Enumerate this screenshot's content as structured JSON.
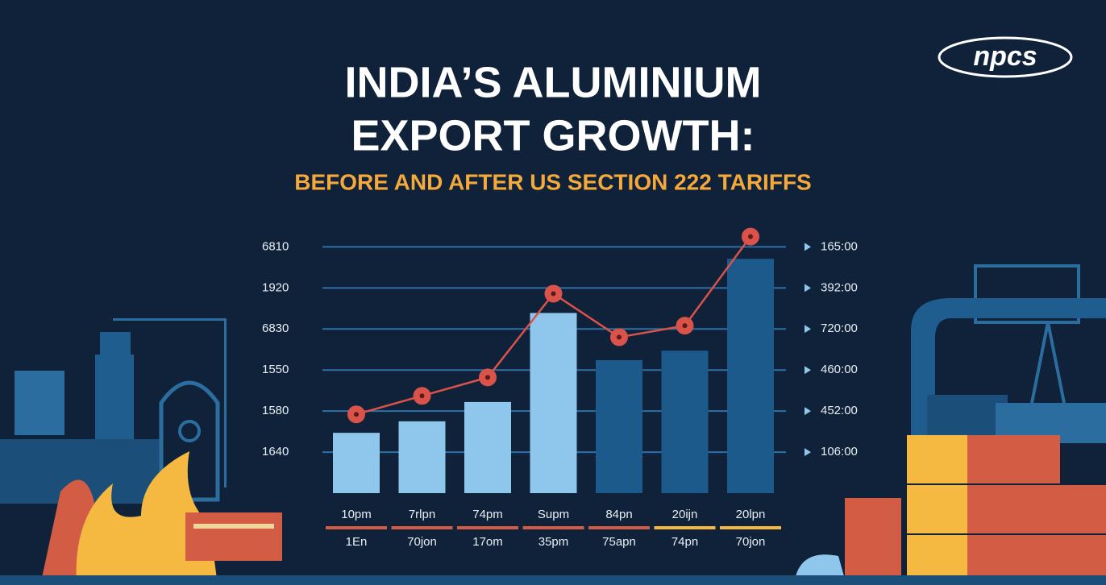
{
  "logo": "npcs",
  "chart_data": {
    "type": "bar",
    "title": [
      "INDIA’S ALUMINIUM",
      "EXPORT GROWTH:"
    ],
    "subtitle": "BEFORE AND AFTER US SECTION 222 TARIFFS",
    "categories": [
      "10pm",
      "7rlpn",
      "74pm",
      "Supm",
      "84pn",
      "20ijn",
      "20lpn"
    ],
    "secondary_categories": [
      "1En",
      "70jon",
      "17om",
      "35pm",
      "75apn",
      "74pn",
      "70jon"
    ],
    "series": [
      {
        "type": "bar",
        "colors": [
          "#8fc6ec",
          "#8fc6ec",
          "#8fc6ec",
          "#8fc6ec",
          "#1d5a8c",
          "#1d5a8c",
          "#1d5a8c"
        ],
        "values": [
          1.47,
          1.75,
          2.22,
          4.39,
          3.24,
          3.47,
          5.71
        ]
      },
      {
        "type": "line",
        "color": "#d9534a",
        "axis": "y2",
        "values": [
          1.92,
          2.37,
          2.82,
          4.86,
          3.8,
          4.08,
          6.25
        ]
      }
    ],
    "ylim": [
      0,
      6.4
    ],
    "yticks": [
      {
        "value": 6,
        "label": "6810"
      },
      {
        "value": 5,
        "label": "1920"
      },
      {
        "value": 4,
        "label": "6830"
      },
      {
        "value": 3,
        "label": "1550"
      },
      {
        "value": 2,
        "label": "1580"
      },
      {
        "value": 1,
        "label": "1640"
      }
    ],
    "y2lim": [
      0,
      6.4
    ],
    "y2ticks": [
      {
        "value": 6,
        "label": "165:00"
      },
      {
        "value": 5,
        "label": "392:00"
      },
      {
        "value": 4,
        "label": "720:00"
      },
      {
        "value": 3,
        "label": "460:00"
      },
      {
        "value": 2,
        "label": "452:00"
      },
      {
        "value": 1,
        "label": "106:00"
      }
    ],
    "grid": true
  }
}
